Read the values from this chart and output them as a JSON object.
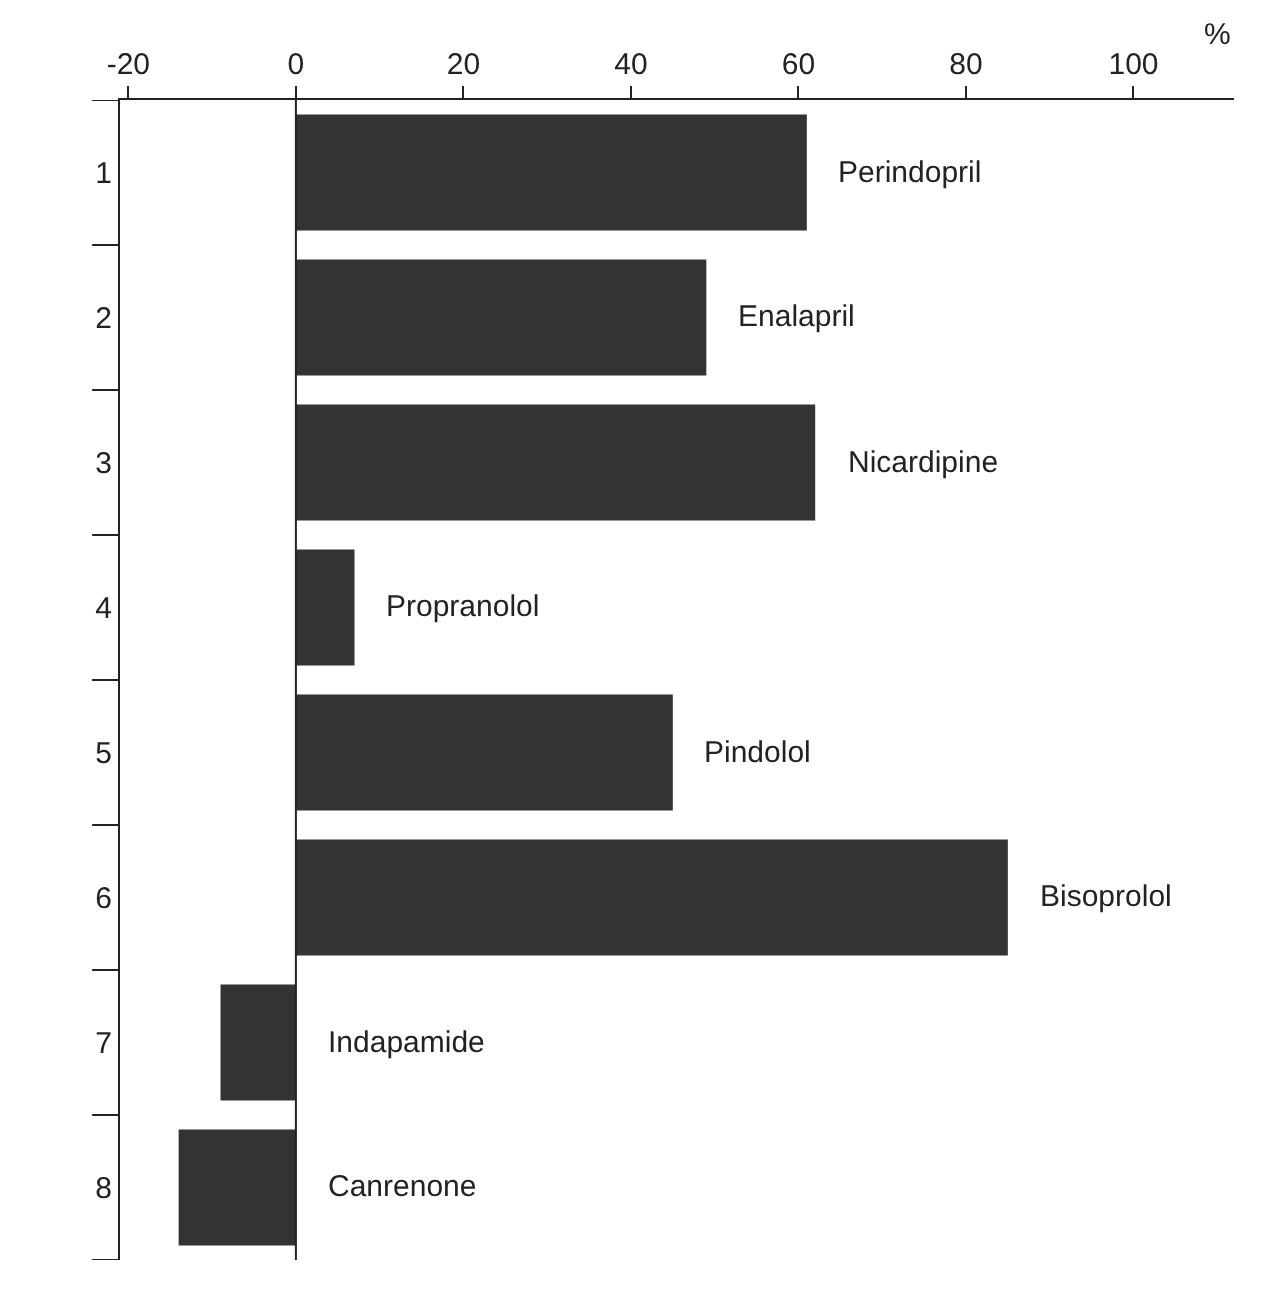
{
  "chart_data": {
    "type": "bar",
    "orientation": "horizontal",
    "xlabel": "%",
    "categories": [
      "1",
      "2",
      "3",
      "4",
      "5",
      "6",
      "7",
      "8"
    ],
    "values": [
      61,
      49,
      62,
      7,
      45,
      85,
      -9,
      -14
    ],
    "color": "#333333",
    "xlim": [
      -21,
      112
    ],
    "xticks": [
      -20,
      0,
      20,
      40,
      60,
      80,
      100
    ],
    "legend": false,
    "ref_lines": [
      {
        "axis": "x",
        "value": 0
      }
    ],
    "annotations": [
      {
        "text": "Perindopril",
        "x": 61,
        "y": "1"
      },
      {
        "text": "Enalapril",
        "x": 49,
        "y": "2"
      },
      {
        "text": "Nicardipine",
        "x": 62,
        "y": "3"
      },
      {
        "text": "Propranolol",
        "x": 7,
        "y": "4"
      },
      {
        "text": "Pindolol",
        "x": 45,
        "y": "5"
      },
      {
        "text": "Bisoprolol",
        "x": 85,
        "y": "6"
      },
      {
        "text": "Indapamide",
        "x": 0,
        "y": "7"
      },
      {
        "text": "Canrenone",
        "x": 0,
        "y": "8"
      }
    ]
  }
}
